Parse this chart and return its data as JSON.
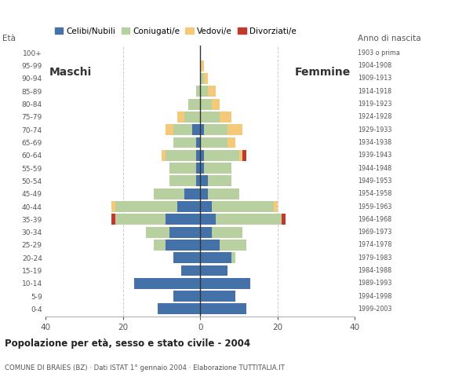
{
  "age_groups": [
    "100+",
    "95-99",
    "90-94",
    "85-89",
    "80-84",
    "75-79",
    "70-74",
    "65-69",
    "60-64",
    "55-59",
    "50-54",
    "45-49",
    "40-44",
    "35-39",
    "30-34",
    "25-29",
    "20-24",
    "15-19",
    "10-14",
    "5-9",
    "0-4"
  ],
  "birth_years": [
    "1903 o prima",
    "1904-1908",
    "1909-1913",
    "1914-1918",
    "1919-1923",
    "1924-1928",
    "1929-1933",
    "1934-1938",
    "1939-1943",
    "1944-1948",
    "1949-1953",
    "1954-1958",
    "1959-1963",
    "1964-1968",
    "1969-1973",
    "1974-1978",
    "1979-1983",
    "1984-1988",
    "1989-1993",
    "1994-1998",
    "1999-2003"
  ],
  "males": {
    "celibe": [
      0,
      0,
      0,
      0,
      0,
      0,
      2,
      1,
      1,
      1,
      1,
      4,
      6,
      9,
      8,
      9,
      7,
      5,
      17,
      7,
      11
    ],
    "coniugato": [
      0,
      0,
      0,
      1,
      3,
      4,
      5,
      6,
      8,
      7,
      7,
      8,
      16,
      13,
      6,
      3,
      0,
      0,
      0,
      0,
      0
    ],
    "vedovo": [
      0,
      0,
      0,
      0,
      0,
      2,
      2,
      0,
      1,
      0,
      0,
      0,
      1,
      0,
      0,
      0,
      0,
      0,
      0,
      0,
      0
    ],
    "divorziato": [
      0,
      0,
      0,
      0,
      0,
      0,
      0,
      0,
      0,
      0,
      0,
      0,
      0,
      1,
      0,
      0,
      0,
      0,
      0,
      0,
      0
    ]
  },
  "females": {
    "nubile": [
      0,
      0,
      0,
      0,
      0,
      0,
      1,
      0,
      1,
      1,
      2,
      2,
      3,
      4,
      3,
      5,
      8,
      7,
      13,
      9,
      12
    ],
    "coniugata": [
      0,
      0,
      1,
      2,
      3,
      5,
      6,
      7,
      9,
      7,
      6,
      8,
      16,
      17,
      8,
      7,
      1,
      0,
      0,
      0,
      0
    ],
    "vedova": [
      0,
      1,
      1,
      2,
      2,
      3,
      4,
      2,
      1,
      0,
      0,
      0,
      1,
      0,
      0,
      0,
      0,
      0,
      0,
      0,
      0
    ],
    "divorziata": [
      0,
      0,
      0,
      0,
      0,
      0,
      0,
      0,
      1,
      0,
      0,
      0,
      0,
      1,
      0,
      0,
      0,
      0,
      0,
      0,
      0
    ]
  },
  "colors": {
    "celibe": "#4472a8",
    "coniugato": "#b8cfa0",
    "vedovo": "#f5c97a",
    "divorziato": "#c0392b"
  },
  "title": "Popolazione per età, sesso e stato civile - 2004",
  "subtitle": "COMUNE DI BRAIES (BZ) · Dati ISTAT 1° gennaio 2004 · Elaborazione TUTTITALIA.IT",
  "label_maschi": "Maschi",
  "label_femmine": "Femmine",
  "label_eta": "Età",
  "label_anno": "Anno di nascita",
  "xlim": 40,
  "legend_labels": [
    "Celibi/Nubili",
    "Coniugati/e",
    "Vedovi/e",
    "Divorziati/e"
  ],
  "bg_color": "#ffffff",
  "bar_height": 0.85
}
